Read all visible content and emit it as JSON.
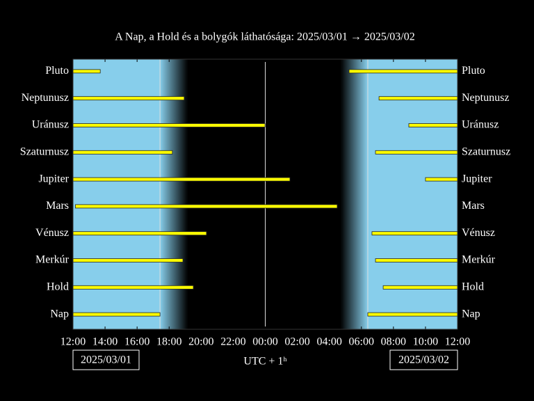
{
  "chart_data": {
    "type": "timeline",
    "title": "A Nap, a Hold és a bolygók láthatósága: 2025/03/01 → 2025/03/02",
    "xlabel": "UTC + 1ʰ",
    "start_date": "2025/03/01",
    "end_date": "2025/03/02",
    "xlim": [
      0,
      24
    ],
    "xticks": [
      {
        "value": 0,
        "label": "12:00"
      },
      {
        "value": 2,
        "label": "14:00"
      },
      {
        "value": 4,
        "label": "16:00"
      },
      {
        "value": 6,
        "label": "18:00"
      },
      {
        "value": 8,
        "label": "20:00"
      },
      {
        "value": 10,
        "label": "22:00"
      },
      {
        "value": 12,
        "label": "00:00"
      },
      {
        "value": 14,
        "label": "02:00"
      },
      {
        "value": 16,
        "label": "04:00"
      },
      {
        "value": 18,
        "label": "06:00"
      },
      {
        "value": 20,
        "label": "08:00"
      },
      {
        "value": 22,
        "label": "10:00"
      },
      {
        "value": 24,
        "label": "12:00"
      }
    ],
    "sunset": 5.43,
    "dusk_end": 7.16,
    "dawn_start": 16.71,
    "sunrise": 18.4,
    "midnight": 12,
    "day_color": "#87ceeb",
    "night_color": "#000000",
    "bar_color": "#ffff00",
    "series": [
      {
        "name": "Pluto",
        "intervals": [
          [
            0,
            1.7
          ],
          [
            17.23,
            24
          ]
        ]
      },
      {
        "name": "Neptunusz",
        "intervals": [
          [
            0,
            6.94
          ],
          [
            19.1,
            24
          ]
        ]
      },
      {
        "name": "Uránusz",
        "intervals": [
          [
            0,
            11.98
          ],
          [
            20.96,
            24
          ]
        ]
      },
      {
        "name": "Szaturnusz",
        "intervals": [
          [
            0,
            6.2
          ],
          [
            18.88,
            24
          ]
        ]
      },
      {
        "name": "Jupiter",
        "intervals": [
          [
            0,
            13.54
          ],
          [
            22.0,
            24
          ]
        ]
      },
      {
        "name": "Mars",
        "intervals": [
          [
            0.15,
            16.49
          ]
        ]
      },
      {
        "name": "Vénusz",
        "intervals": [
          [
            0,
            8.33
          ],
          [
            18.66,
            24
          ]
        ]
      },
      {
        "name": "Merkúr",
        "intervals": [
          [
            0,
            6.86
          ],
          [
            18.88,
            24
          ]
        ]
      },
      {
        "name": "Hold",
        "intervals": [
          [
            0,
            7.51
          ],
          [
            19.36,
            24
          ]
        ]
      },
      {
        "name": "Nap",
        "intervals": [
          [
            0,
            5.43
          ],
          [
            18.4,
            24
          ]
        ]
      }
    ]
  }
}
